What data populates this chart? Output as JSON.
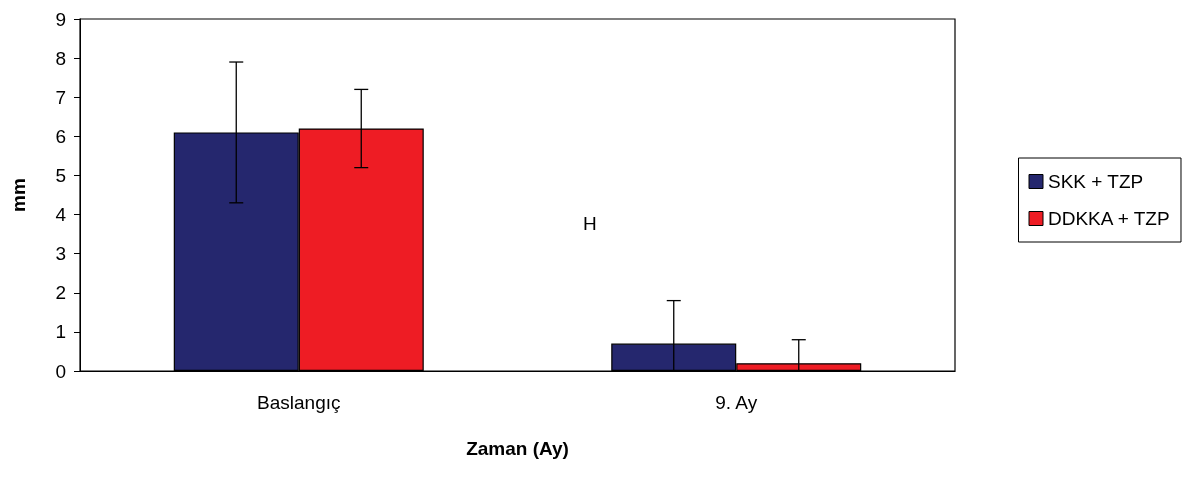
{
  "chart_data": {
    "type": "bar",
    "xlabel": "Zaman (Ay)",
    "ylabel": "mm",
    "categories": [
      "Baslangıç",
      "9. Ay"
    ],
    "series": [
      {
        "name": "SKK + TZP",
        "color": "#25276e",
        "values": [
          6.1,
          0.7
        ],
        "errors": [
          1.8,
          [
            0,
            1.8
          ]
        ]
      },
      {
        "name": "DDKKA + TZP",
        "color": "#ee1c24",
        "values": [
          6.2,
          0.2
        ],
        "errors": [
          1.0,
          [
            0,
            0.8
          ]
        ]
      }
    ],
    "ylim": [
      0,
      9
    ],
    "yticks": [
      0,
      1,
      2,
      3,
      4,
      5,
      6,
      7,
      8,
      9
    ],
    "grid": false,
    "legend": "right",
    "annotations": [
      "H"
    ]
  }
}
